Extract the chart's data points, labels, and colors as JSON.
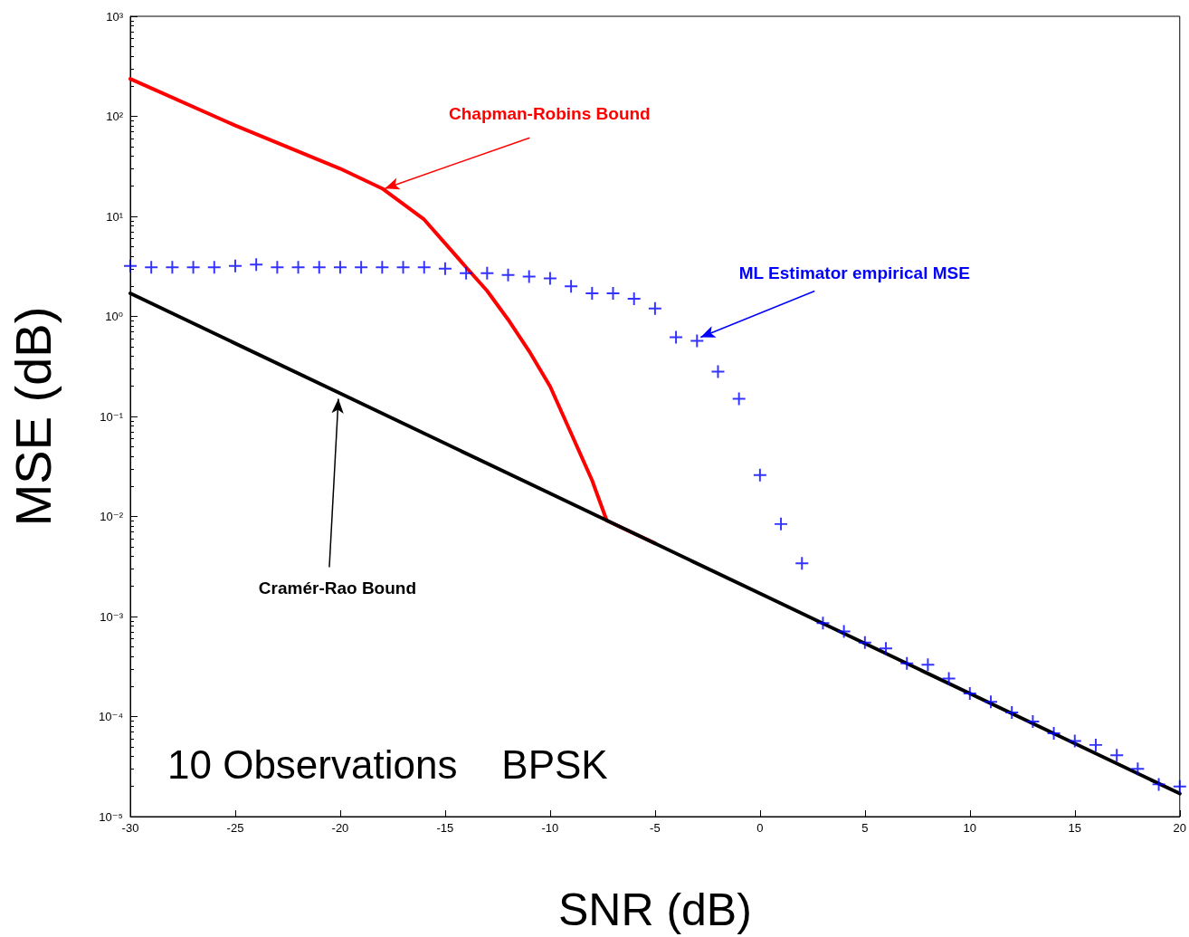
{
  "chart_data": {
    "type": "line",
    "xlabel": "SNR (dB)",
    "ylabel": "MSE (dB)",
    "log": "y",
    "grid": false,
    "xlim": [
      -30,
      20
    ],
    "xticks": [
      -30,
      -25,
      -20,
      -15,
      -10,
      -5,
      0,
      5,
      10,
      15,
      20
    ],
    "ylim": [
      1e-05,
      1000
    ],
    "yticks": [
      {
        "value": 1e-05,
        "label": "10⁻⁵"
      },
      {
        "value": 0.0001,
        "label": "10⁻⁴"
      },
      {
        "value": 0.001,
        "label": "10⁻³"
      },
      {
        "value": 0.01,
        "label": "10⁻²"
      },
      {
        "value": 0.1,
        "label": "10⁻¹"
      },
      {
        "value": 1,
        "label": "10⁰"
      },
      {
        "value": 10,
        "label": "10¹"
      },
      {
        "value": 100,
        "label": "10²"
      },
      {
        "value": 1000,
        "label": "10³"
      }
    ],
    "series": [
      {
        "color": "#ff0000",
        "marker": "none",
        "line_style": "solid",
        "x": [
          -30,
          -25,
          -20,
          -18,
          -16,
          -14,
          -13,
          -12,
          -11,
          -10,
          -9,
          -8,
          -7.3,
          -5
        ],
        "values": [
          237,
          81,
          30,
          19,
          9.3,
          3.1,
          1.8,
          0.93,
          0.45,
          0.2,
          0.068,
          0.023,
          0.0091,
          0.0054
        ]
      },
      {
        "type": "scatter",
        "color": "#0000ff",
        "marker": "cross",
        "x": [
          -30,
          -29,
          -28,
          -27,
          -26,
          -25,
          -24,
          -23,
          -22,
          -21,
          -20,
          -19,
          -18,
          -17,
          -16,
          -15,
          -14,
          -13,
          -12,
          -11,
          -10,
          -9,
          -8,
          -7,
          -6,
          -5,
          -4,
          -3,
          -2,
          -1,
          0,
          1,
          2,
          3,
          4,
          5,
          6,
          7,
          8,
          9,
          10,
          11,
          12,
          13,
          14,
          15,
          16,
          17,
          18,
          19,
          20
        ],
        "values": [
          3.2,
          3.1,
          3.1,
          3.1,
          3.1,
          3.2,
          3.3,
          3.1,
          3.1,
          3.1,
          3.1,
          3.1,
          3.1,
          3.1,
          3.1,
          3.0,
          2.7,
          2.7,
          2.6,
          2.5,
          2.4,
          2.0,
          1.7,
          1.7,
          1.5,
          1.2,
          0.62,
          0.57,
          0.28,
          0.15,
          0.026,
          0.0084,
          0.0034,
          0.00086,
          0.00071,
          0.00055,
          0.00048,
          0.00034,
          0.00033,
          0.00024,
          0.00017,
          0.00014,
          0.00011,
          8.9e-05,
          6.8e-05,
          5.7e-05,
          5.2e-05,
          4.1e-05,
          3e-05,
          2.1e-05,
          2e-05
        ]
      },
      {
        "color": "#000000",
        "marker": "none",
        "line_style": "solid",
        "x": [
          -30,
          -20,
          -10,
          0,
          10,
          20
        ],
        "values": [
          1.7,
          0.17,
          0.017,
          0.0017,
          0.00017,
          1.7e-05
        ]
      }
    ],
    "annotations": [
      {
        "text": "Chapman-Robins Bound",
        "x": -18,
        "y": 19
      },
      {
        "text": "ML Estimator empirical MSE",
        "x": -3,
        "y": 0.57
      },
      {
        "text": "Cramér-Rao Bound",
        "x": -20,
        "y": 0.17
      },
      "10 Observations    BPSK"
    ]
  }
}
